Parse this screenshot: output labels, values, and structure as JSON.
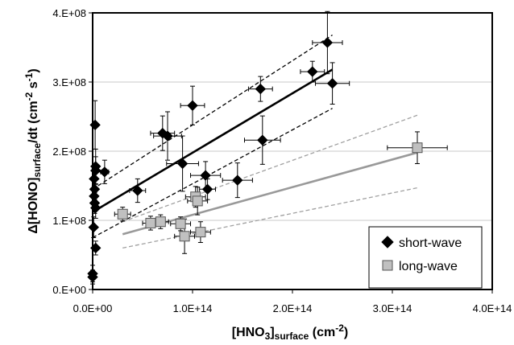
{
  "chart_data": {
    "type": "scatter",
    "xlabel": {
      "main": "[HNO",
      "sub3": "3",
      "sub": "surface",
      "tail": " (cm",
      "sup": "-2",
      "close": ")"
    },
    "ylabel": {
      "delta": "Δ",
      "main": "[HONO]",
      "sub": "surface",
      "mid": "/dt  (cm",
      "sup1": "-2",
      "sep": " s",
      "sup2": "-1",
      "close": ")"
    },
    "xlim": [
      0,
      400000000000000.0
    ],
    "ylim": [
      0,
      400000000.0
    ],
    "x_ticks": [
      {
        "value": 0,
        "label": "0.0E+00"
      },
      {
        "value": 100000000000000.0,
        "label": "1.0E+14"
      },
      {
        "value": 200000000000000.0,
        "label": "2.0E+14"
      },
      {
        "value": 300000000000000.0,
        "label": "3.0E+14"
      },
      {
        "value": 400000000000000.0,
        "label": "4.0E+14"
      }
    ],
    "y_ticks": [
      {
        "value": 0,
        "label": "0.E+00"
      },
      {
        "value": 100000000.0,
        "label": "1.E+08"
      },
      {
        "value": 200000000.0,
        "label": "2.E+08"
      },
      {
        "value": 300000000.0,
        "label": "3.E+08"
      },
      {
        "value": 400000000.0,
        "label": "4.E+08"
      }
    ],
    "grid": "horizontal",
    "legend_position": "bottom-right",
    "series": [
      {
        "name": "short-wave",
        "marker": "diamond",
        "color": "#000000",
        "points": [
          {
            "x": 0,
            "y": 23000000.0,
            "xerr": 400000000000.0,
            "yerr": 12000000.0
          },
          {
            "x": 0,
            "y": 18000000.0,
            "xerr": 400000000000.0,
            "yerr": 10000000.0
          },
          {
            "x": 1000000000000.0,
            "y": 90000000.0,
            "xerr": 1000000000000.0,
            "yerr": 15000000.0
          },
          {
            "x": 1500000000000.0,
            "y": 160000000.0,
            "xerr": 1200000000000.0,
            "yerr": 15000000.0
          },
          {
            "x": 1500000000000.0,
            "y": 135000000.0,
            "xerr": 1200000000000.0,
            "yerr": 15000000.0
          },
          {
            "x": 2000000000000.0,
            "y": 145000000.0,
            "xerr": 1200000000000.0,
            "yerr": 15000000.0
          },
          {
            "x": 2000000000000.0,
            "y": 125000000.0,
            "xerr": 1200000000000.0,
            "yerr": 15000000.0
          },
          {
            "x": 2500000000000.0,
            "y": 238000000.0,
            "xerr": 1500000000000.0,
            "yerr": 35000000.0
          },
          {
            "x": 3000000000000.0,
            "y": 178000000.0,
            "xerr": 1500000000000.0,
            "yerr": 25000000.0
          },
          {
            "x": 3000000000000.0,
            "y": 172000000.0,
            "xerr": 1500000000000.0,
            "yerr": 20000000.0
          },
          {
            "x": 3000000000000.0,
            "y": 118000000.0,
            "xerr": 1500000000000.0,
            "yerr": 15000000.0
          },
          {
            "x": 3000000000000.0,
            "y": 60000000.0,
            "xerr": 1500000000000.0,
            "yerr": 10000000.0
          },
          {
            "x": 12000000000000.0,
            "y": 170000000.0,
            "xerr": 4000000000000.0,
            "yerr": 17000000.0
          },
          {
            "x": 45000000000000.0,
            "y": 143000000.0,
            "xerr": 8000000000000.0,
            "yerr": 17000000.0
          },
          {
            "x": 70000000000000.0,
            "y": 226000000.0,
            "xerr": 12000000000000.0,
            "yerr": 25000000.0
          },
          {
            "x": 75000000000000.0,
            "y": 222000000.0,
            "xerr": 14000000000000.0,
            "yerr": 35000000.0
          },
          {
            "x": 90000000000000.0,
            "y": 182000000.0,
            "xerr": 16000000000000.0,
            "yerr": 40000000.0
          },
          {
            "x": 100000000000000.0,
            "y": 266000000.0,
            "xerr": 12000000000000.0,
            "yerr": 28000000.0
          },
          {
            "x": 113000000000000.0,
            "y": 165000000.0,
            "xerr": 15000000000000.0,
            "yerr": 20000000.0
          },
          {
            "x": 115000000000000.0,
            "y": 145000000.0,
            "xerr": 8000000000000.0,
            "yerr": 15000000.0
          },
          {
            "x": 145000000000000.0,
            "y": 158000000.0,
            "xerr": 15000000000000.0,
            "yerr": 25000000.0
          },
          {
            "x": 168000000000000.0,
            "y": 290000000.0,
            "xerr": 12000000000000.0,
            "yerr": 18000000.0
          },
          {
            "x": 170000000000000.0,
            "y": 216000000.0,
            "xerr": 18000000000000.0,
            "yerr": 35000000.0
          },
          {
            "x": 220000000000000.0,
            "y": 315000000.0,
            "xerr": 12000000000000.0,
            "yerr": 15000000.0
          },
          {
            "x": 235000000000000.0,
            "y": 357000000.0,
            "xerr": 15000000000000.0,
            "yerr": 45000000.0
          },
          {
            "x": 240000000000000.0,
            "y": 298000000.0,
            "xerr": 17000000000000.0,
            "yerr": 30000000.0
          }
        ],
        "fit": {
          "x": [
            0,
            240000000000000.0
          ],
          "y": [
            112000000.0,
            318000000.0
          ]
        },
        "band_upper": {
          "x": [
            0,
            240000000000000.0
          ],
          "y": [
            145000000.0,
            368000000.0
          ]
        },
        "band_lower": {
          "x": [
            0,
            240000000000000.0
          ],
          "y": [
            75000000.0,
            262000000.0
          ]
        }
      },
      {
        "name": "long-wave",
        "marker": "square",
        "color": "#c0c0c0",
        "points": [
          {
            "x": 30000000000000.0,
            "y": 109000000.0,
            "xerr": 8000000000000.0,
            "yerr": 10000000.0
          },
          {
            "x": 58000000000000.0,
            "y": 96000000.0,
            "xerr": 8000000000000.0,
            "yerr": 10000000.0
          },
          {
            "x": 68000000000000.0,
            "y": 98000000.0,
            "xerr": 8000000000000.0,
            "yerr": 10000000.0
          },
          {
            "x": 88000000000000.0,
            "y": 95000000.0,
            "xerr": 10000000000000.0,
            "yerr": 10000000.0
          },
          {
            "x": 92000000000000.0,
            "y": 77000000.0,
            "xerr": 10000000000000.0,
            "yerr": 25000000.0
          },
          {
            "x": 103000000000000.0,
            "y": 134000000.0,
            "xerr": 10000000000000.0,
            "yerr": 15000000.0
          },
          {
            "x": 105000000000000.0,
            "y": 128000000.0,
            "xerr": 10000000000000.0,
            "yerr": 20000000.0
          },
          {
            "x": 108000000000000.0,
            "y": 83000000.0,
            "xerr": 10000000000000.0,
            "yerr": 15000000.0
          },
          {
            "x": 325000000000000.0,
            "y": 205000000.0,
            "xerr": 30000000000000.0,
            "yerr": 23000000.0
          }
        ],
        "fit": {
          "x": [
            30000000000000.0,
            325000000000000.0
          ],
          "y": [
            80000000.0,
            198000000.0
          ]
        },
        "band_upper": {
          "x": [
            30000000000000.0,
            325000000000000.0
          ],
          "y": [
            98000000.0,
            252000000.0
          ]
        },
        "band_lower": {
          "x": [
            30000000000000.0,
            325000000000000.0
          ],
          "y": [
            60000000.0,
            147000000.0
          ]
        }
      }
    ]
  }
}
